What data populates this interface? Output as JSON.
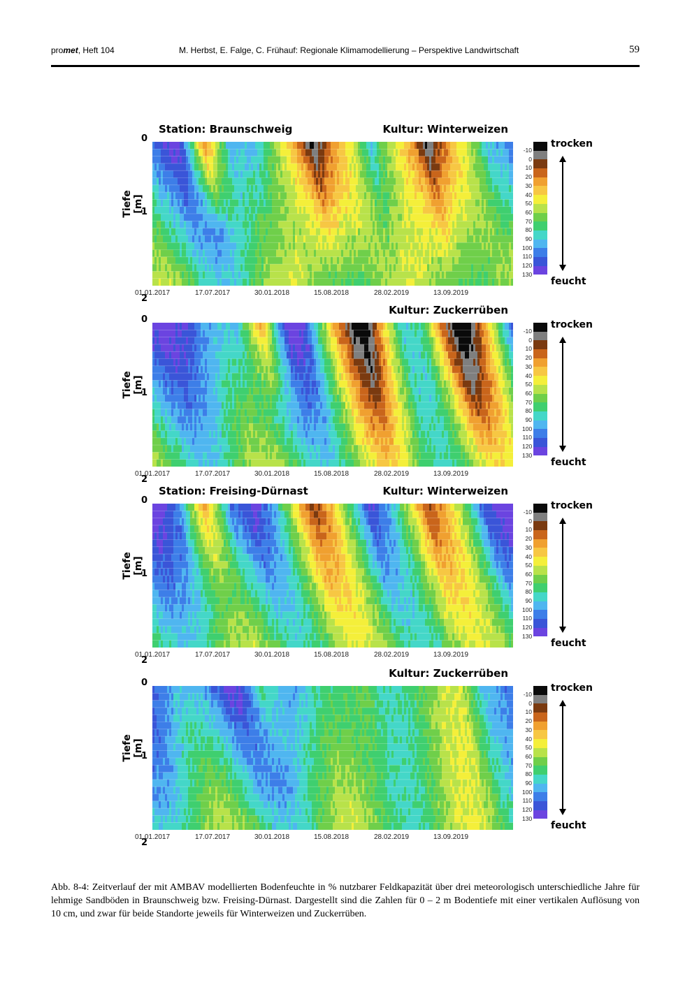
{
  "header": {
    "journal_prefix": "pro",
    "journal_emph": "met",
    "journal_issue": ", Heft 104",
    "authors_title": "M. Herbst, E. Falge, C. Frühauf: Regionale Klimamodellierung – Perspektive Landwirtschaft",
    "page_number": "59"
  },
  "axis": {
    "ylabel": "Tiefe [m]",
    "yticks": [
      "0",
      "1",
      "2"
    ],
    "xticks": [
      "01.01.2017",
      "17.07.2017",
      "30.01.2018",
      "15.08.2018",
      "28.02.2019",
      "13.09.2019"
    ]
  },
  "colorbar": {
    "labels": [
      "-10",
      "0",
      "10",
      "20",
      "30",
      "40",
      "50",
      "60",
      "70",
      "80",
      "90",
      "100",
      "110",
      "120",
      "130"
    ],
    "colors": [
      "#0a0a0a",
      "#7f7f7f",
      "#7a3a10",
      "#c9651b",
      "#f0a030",
      "#f7c743",
      "#f4ef3a",
      "#b8e24a",
      "#6fcf4a",
      "#3fcf6f",
      "#44d7c8",
      "#4fb6f0",
      "#3d7ee8",
      "#3a55d8",
      "#6b44e0"
    ],
    "dry_label": "trocken",
    "wet_label": "feucht"
  },
  "panels": [
    {
      "station": "Station: Braunschweig",
      "crop": "Kultur: Winterweizen"
    },
    {
      "station": "",
      "crop": "Kultur: Zuckerrüben"
    },
    {
      "station": "Station: Freising-Dürnast",
      "crop": "Kultur: Winterweizen"
    },
    {
      "station": "",
      "crop": "Kultur: Zuckerrüben"
    }
  ],
  "caption": "Abb. 8-4: Zeitverlauf der mit AMBAV modellierten Bodenfeuchte in % nutzbarer Feldkapazität über drei meteorologisch unterschiedliche Jahre für lehmige Sandböden in Braunschweig bzw. Freising-Dürnast. Dargestellt sind die Zahlen für 0 – 2 m Bodentiefe mit einer vertikalen Auflösung von 10 cm, und zwar für beide Standorte jeweils für Winterweizen und Zuckerrüben."
}
